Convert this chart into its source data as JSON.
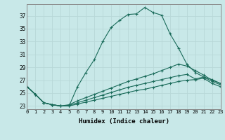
{
  "xlabel": "Humidex (Indice chaleur)",
  "bg_color": "#c8e8e8",
  "grid_color": "#b8d8d8",
  "line_color": "#1a6b5a",
  "xlim": [
    0,
    23
  ],
  "ylim": [
    22.5,
    38.8
  ],
  "xticks": [
    0,
    1,
    2,
    3,
    4,
    5,
    6,
    7,
    8,
    9,
    10,
    11,
    12,
    13,
    14,
    15,
    16,
    17,
    18,
    19,
    20,
    21,
    22,
    23
  ],
  "yticks": [
    23,
    25,
    27,
    29,
    31,
    33,
    35,
    37
  ],
  "series": [
    [
      26.0,
      24.8,
      23.5,
      23.2,
      23.0,
      23.0,
      26.0,
      28.2,
      30.2,
      33.0,
      35.2,
      36.3,
      37.2,
      37.3,
      38.3,
      37.5,
      37.1,
      34.2,
      32.0,
      29.5,
      28.2,
      27.5,
      27.1,
      26.5
    ],
    [
      26.0,
      24.8,
      23.5,
      23.2,
      23.0,
      23.2,
      23.8,
      24.3,
      24.8,
      25.3,
      25.8,
      26.3,
      26.8,
      27.2,
      27.6,
      28.0,
      28.5,
      29.0,
      29.5,
      29.2,
      28.5,
      27.8,
      27.0,
      26.5
    ],
    [
      26.0,
      24.8,
      23.5,
      23.2,
      23.0,
      23.1,
      23.5,
      23.9,
      24.3,
      24.7,
      25.1,
      25.5,
      25.9,
      26.2,
      26.5,
      26.8,
      27.1,
      27.4,
      27.7,
      27.9,
      27.2,
      27.5,
      26.8,
      26.3
    ],
    [
      26.0,
      24.8,
      23.5,
      23.2,
      23.0,
      23.0,
      23.3,
      23.6,
      23.9,
      24.2,
      24.5,
      24.8,
      25.1,
      25.4,
      25.6,
      25.9,
      26.2,
      26.5,
      26.8,
      27.0,
      27.1,
      27.3,
      26.5,
      26.0
    ]
  ],
  "marker": "+",
  "markersize": 3.0,
  "linewidth": 0.8
}
